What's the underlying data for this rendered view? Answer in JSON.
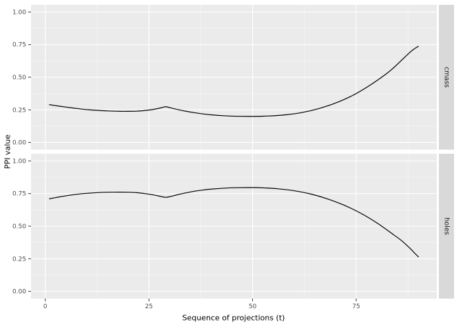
{
  "chart_data": {
    "type": "line",
    "title": "",
    "xlabel": "Sequence of projections (t)",
    "ylabel": "PPI value",
    "xlim": [
      -3.45,
      94.45
    ],
    "ylim": [
      -0.055,
      1.055
    ],
    "x_ticks": [
      0,
      25,
      50,
      75
    ],
    "x_tick_labels": [
      "0",
      "25",
      "50",
      "75"
    ],
    "x_minor": [
      12.5,
      37.5,
      62.5,
      87.5
    ],
    "y_ticks": [
      0,
      0.25,
      0.5,
      0.75,
      1
    ],
    "y_tick_labels": [
      "0.00",
      "0.25",
      "0.50",
      "0.75",
      "1.00"
    ],
    "y_minor": [
      0.125,
      0.375,
      0.625,
      0.875
    ],
    "grid": "on",
    "legend": "none",
    "facet_position": "right",
    "colors": {
      "line": "#000000",
      "panel_bg": "#ebebeb",
      "grid_major": "#ffffff",
      "grid_minor": "#f7f7f7",
      "strip_bg": "#d9d9d9",
      "strip_text": "#1a1a1a",
      "tick_text": "#4d4d4d",
      "tick_mark": "#333333"
    },
    "facets": [
      {
        "label": "cmass",
        "points": [
          [
            1,
            0.29
          ],
          [
            3,
            0.28
          ],
          [
            5,
            0.271
          ],
          [
            8,
            0.259
          ],
          [
            10,
            0.252
          ],
          [
            13,
            0.245
          ],
          [
            15,
            0.242
          ],
          [
            18,
            0.239
          ],
          [
            20,
            0.239
          ],
          [
            22,
            0.24
          ],
          [
            24,
            0.245
          ],
          [
            26,
            0.253
          ],
          [
            28,
            0.266
          ],
          [
            29,
            0.274
          ],
          [
            30,
            0.267
          ],
          [
            32,
            0.252
          ],
          [
            34,
            0.239
          ],
          [
            36,
            0.228
          ],
          [
            38,
            0.219
          ],
          [
            40,
            0.212
          ],
          [
            43,
            0.205
          ],
          [
            46,
            0.201
          ],
          [
            50,
            0.2
          ],
          [
            54,
            0.203
          ],
          [
            58,
            0.212
          ],
          [
            62,
            0.23
          ],
          [
            66,
            0.26
          ],
          [
            70,
            0.302
          ],
          [
            74,
            0.358
          ],
          [
            78,
            0.432
          ],
          [
            82,
            0.52
          ],
          [
            84,
            0.572
          ],
          [
            86,
            0.632
          ],
          [
            88,
            0.692
          ],
          [
            89,
            0.717
          ],
          [
            90,
            0.737
          ]
        ]
      },
      {
        "label": "holes",
        "points": [
          [
            1,
            0.71
          ],
          [
            3,
            0.722
          ],
          [
            5,
            0.733
          ],
          [
            8,
            0.746
          ],
          [
            10,
            0.752
          ],
          [
            13,
            0.758
          ],
          [
            15,
            0.76
          ],
          [
            18,
            0.761
          ],
          [
            20,
            0.76
          ],
          [
            22,
            0.757
          ],
          [
            24,
            0.75
          ],
          [
            26,
            0.74
          ],
          [
            28,
            0.727
          ],
          [
            29,
            0.721
          ],
          [
            30,
            0.726
          ],
          [
            32,
            0.742
          ],
          [
            34,
            0.756
          ],
          [
            36,
            0.768
          ],
          [
            38,
            0.777
          ],
          [
            40,
            0.784
          ],
          [
            43,
            0.791
          ],
          [
            46,
            0.795
          ],
          [
            50,
            0.796
          ],
          [
            53,
            0.793
          ],
          [
            56,
            0.787
          ],
          [
            60,
            0.772
          ],
          [
            64,
            0.747
          ],
          [
            68,
            0.71
          ],
          [
            72,
            0.662
          ],
          [
            76,
            0.601
          ],
          [
            80,
            0.525
          ],
          [
            84,
            0.435
          ],
          [
            86,
            0.388
          ],
          [
            88,
            0.33
          ],
          [
            89,
            0.297
          ],
          [
            90,
            0.265
          ]
        ]
      }
    ]
  }
}
